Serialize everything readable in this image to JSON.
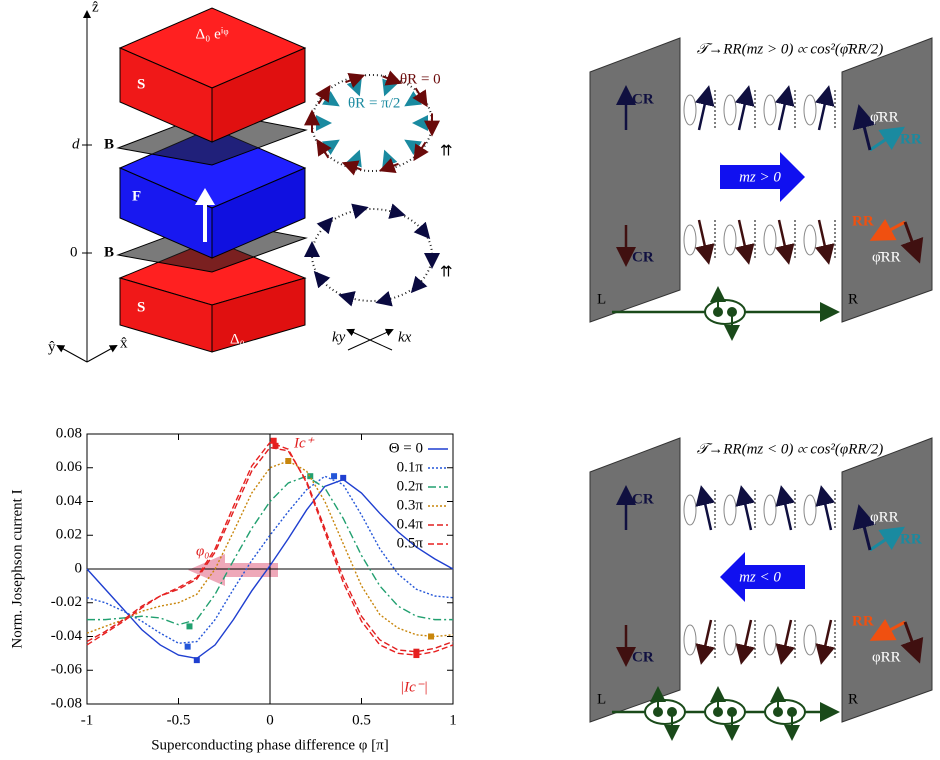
{
  "panel_a": {
    "axis_z": "ẑ",
    "axis_y": "ŷ",
    "axis_x": "x̂",
    "tick_d": "d",
    "tick_0": "0",
    "layers": [
      "S",
      "B",
      "F",
      "B",
      "S"
    ],
    "top_gap": "Δ₀ eⁱᵠ",
    "bottom_gap": "Δ₀",
    "theta_0": "θR = 0",
    "theta_pi2": "θR = π/2",
    "ky": "ky",
    "kx": "kx",
    "arrows": [
      "⇈",
      "⇈"
    ]
  },
  "panel_b": {
    "title": "𝒯→RR(mz > 0) ∝ cos²(φ̄RR/2)",
    "cr_top": "CR",
    "cr_bottom": "CR",
    "mz": "mz > 0",
    "phi_top": "φ̄RR",
    "rr_top": "RR",
    "rr_bottom": "RR",
    "phi_bottom": "φ̄RR",
    "left": "L",
    "right": "R"
  },
  "panel_d": {
    "title": "𝒯→RR(mz < 0) ∝ cos²(φRR/2)",
    "cr_top": "CR",
    "cr_bottom": "CR",
    "mz": "mz < 0",
    "phi_top": "φRR",
    "rr_top": "RR",
    "rr_bottom": "RR",
    "phi_bottom": "φRR",
    "left": "L",
    "right": "R"
  },
  "chart_data": {
    "type": "line",
    "x_label": "Superconducting phase difference φ [π]",
    "y_label": "Norm. Josephson current I",
    "x": [
      -1,
      -0.9,
      -0.8,
      -0.7,
      -0.6,
      -0.5,
      -0.4,
      -0.3,
      -0.2,
      -0.1,
      0,
      0.1,
      0.2,
      0.3,
      0.4,
      0.5,
      0.6,
      0.7,
      0.8,
      0.9,
      1
    ],
    "series": [
      {
        "name": "Θ = 0",
        "color": "#1f3fd0",
        "style": "solid",
        "values": [
          0,
          -0.012,
          -0.024,
          -0.036,
          -0.045,
          -0.051,
          -0.053,
          -0.045,
          -0.03,
          -0.013,
          0.002,
          0.018,
          0.035,
          0.049,
          0.053,
          0.045,
          0.033,
          0.022,
          0.013,
          0.006,
          0
        ],
        "extrema": [
          [
            0.4,
            0.054
          ],
          [
            -0.4,
            -0.054
          ]
        ]
      },
      {
        "name": "0.1π",
        "color": "#2456d8",
        "style": "dotted",
        "values": [
          -0.017,
          -0.02,
          -0.025,
          -0.031,
          -0.038,
          -0.044,
          -0.043,
          -0.03,
          -0.012,
          0.005,
          0.02,
          0.034,
          0.047,
          0.055,
          0.05,
          0.032,
          0.012,
          -0.003,
          -0.012,
          -0.016,
          -0.017
        ],
        "extrema": [
          [
            0.35,
            0.055
          ],
          [
            -0.45,
            -0.046
          ]
        ]
      },
      {
        "name": "0.2π",
        "color": "#22a070",
        "style": "dashdot",
        "values": [
          -0.03,
          -0.03,
          -0.029,
          -0.028,
          -0.029,
          -0.033,
          -0.03,
          -0.015,
          0.005,
          0.024,
          0.04,
          0.051,
          0.055,
          0.048,
          0.03,
          0.008,
          -0.01,
          -0.022,
          -0.028,
          -0.03,
          -0.03
        ],
        "extrema": [
          [
            0.22,
            0.055
          ],
          [
            -0.44,
            -0.034
          ]
        ]
      },
      {
        "name": "0.3π",
        "color": "#c8860c",
        "style": "dotted",
        "values": [
          -0.038,
          -0.034,
          -0.03,
          -0.025,
          -0.022,
          -0.02,
          -0.015,
          0,
          0.022,
          0.045,
          0.06,
          0.064,
          0.058,
          0.04,
          0.015,
          -0.01,
          -0.027,
          -0.035,
          -0.039,
          -0.04,
          -0.039
        ],
        "extrema": [
          [
            0.1,
            0.064
          ],
          [
            0.88,
            -0.04
          ]
        ]
      },
      {
        "name": "0.4π",
        "color": "#e02020",
        "style": "dashed",
        "values": [
          -0.043,
          -0.037,
          -0.03,
          -0.022,
          -0.016,
          -0.012,
          -0.006,
          0.01,
          0.034,
          0.058,
          0.072,
          0.07,
          0.052,
          0.024,
          -0.005,
          -0.028,
          -0.042,
          -0.048,
          -0.049,
          -0.047,
          -0.043
        ],
        "extrema": [
          [
            0.03,
            0.073
          ],
          [
            0.8,
            -0.049
          ]
        ]
      },
      {
        "name": "0.5π",
        "color": "#e82020",
        "style": "dashed",
        "values": [
          -0.045,
          -0.038,
          -0.031,
          -0.023,
          -0.016,
          -0.011,
          -0.005,
          0.012,
          0.037,
          0.061,
          0.075,
          0.071,
          0.051,
          0.022,
          -0.008,
          -0.031,
          -0.045,
          -0.05,
          -0.051,
          -0.049,
          -0.045
        ],
        "extrema": [
          [
            0.02,
            0.076
          ],
          [
            0.8,
            -0.051
          ]
        ]
      }
    ],
    "xlim": [
      -1,
      1
    ],
    "xticks": [
      -1,
      -0.5,
      0,
      0.5,
      1
    ],
    "ylim": [
      -0.08,
      0.08
    ],
    "yticks": [
      -0.08,
      -0.06,
      -0.04,
      -0.02,
      0,
      0.02,
      0.04,
      0.06,
      0.08
    ],
    "grid": false,
    "legend": "upper right",
    "annotations": {
      "phi0": "φ₀",
      "ic_plus": "Ic⁺",
      "ic_minus": "|Ic⁻|"
    }
  }
}
